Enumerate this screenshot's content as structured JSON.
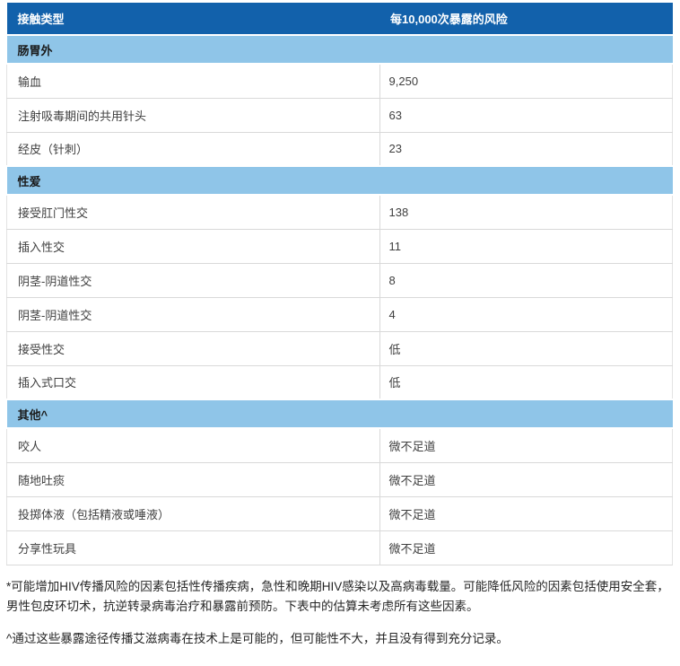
{
  "table": {
    "columns": [
      "接触类型",
      "每10,000次暴露的风险"
    ],
    "sections": [
      {
        "title": "肠胃外",
        "rows": [
          {
            "type": "输血",
            "risk": "9,250"
          },
          {
            "type": "注射吸毒期间的共用针头",
            "risk": "63"
          },
          {
            "type": "经皮（针刺）",
            "risk": "23"
          }
        ]
      },
      {
        "title": "性爱",
        "rows": [
          {
            "type": "接受肛门性交",
            "risk": "138"
          },
          {
            "type": "插入性交",
            "risk": "11"
          },
          {
            "type": "阴茎-阴道性交",
            "risk": "8"
          },
          {
            "type": "阴茎-阴道性交",
            "risk": "4"
          },
          {
            "type": "接受性交",
            "risk": "低"
          },
          {
            "type": "插入式口交",
            "risk": "低"
          }
        ]
      },
      {
        "title": "其他^",
        "rows": [
          {
            "type": "咬人",
            "risk": "微不足道"
          },
          {
            "type": "随地吐痰",
            "risk": "微不足道"
          },
          {
            "type": "投掷体液（包括精液或唾液）",
            "risk": "微不足道"
          },
          {
            "type": "分享性玩具",
            "risk": "微不足道"
          }
        ]
      }
    ]
  },
  "footnotes": [
    "*可能增加HIV传播风险的因素包括性传播疾病，急性和晚期HIV感染以及高病毒载量。可能降低风险的因素包括使用安全套，男性包皮环切术，抗逆转录病毒治疗和暴露前预防。下表中的估算未考虑所有这些因素。",
    "^通过这些暴露途径传播艾滋病毒在技术上是可能的，但可能性不大，并且没有得到充分记录。"
  ],
  "colors": {
    "header_bg": "#1261ab",
    "header_text": "#ffffff",
    "section_bg": "#8fc5e8",
    "section_text": "#1a1a1a",
    "row_text": "#404040",
    "border": "#d9d9d9"
  }
}
